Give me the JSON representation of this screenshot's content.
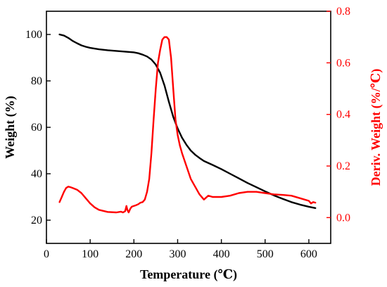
{
  "chart_data": {
    "type": "line",
    "title": "",
    "xlabel": "Temperature (℃)",
    "ylabel": "Weight (%)",
    "ylabel_right": "Deriv. Weight (%/℃)",
    "xlim": [
      0,
      650
    ],
    "ylim": [
      10,
      110
    ],
    "ylim_right": [
      -0.1,
      0.8
    ],
    "x_ticks": [
      0,
      100,
      200,
      300,
      400,
      500,
      600
    ],
    "y_ticks": [
      20,
      40,
      60,
      80,
      100
    ],
    "y_ticks_right": [
      0.0,
      0.2,
      0.4,
      0.6,
      0.8
    ],
    "y_tick_labels_right": [
      "0.0",
      "0.2",
      "0.4",
      "0.6",
      "0.8"
    ],
    "colors": {
      "left_axis": "#000000",
      "right_axis": "#ff0000"
    },
    "grid": false,
    "series": [
      {
        "axis": "left",
        "color": "#000000",
        "x": [
          30,
          40,
          50,
          60,
          70,
          80,
          90,
          100,
          120,
          140,
          160,
          180,
          200,
          210,
          220,
          230,
          240,
          250,
          260,
          270,
          280,
          290,
          300,
          310,
          320,
          330,
          340,
          350,
          360,
          380,
          400,
          420,
          440,
          460,
          480,
          500,
          520,
          540,
          560,
          580,
          600,
          615
        ],
        "y": [
          100,
          99.5,
          98.5,
          97.2,
          96.2,
          95.3,
          94.7,
          94.2,
          93.6,
          93.2,
          92.9,
          92.6,
          92.3,
          91.9,
          91.3,
          90.5,
          89.2,
          87.0,
          83.5,
          78.0,
          71.0,
          64.5,
          59.5,
          55.5,
          52.5,
          50.0,
          48.2,
          46.8,
          45.5,
          43.8,
          42.0,
          40.0,
          38.0,
          36.0,
          34.2,
          32.4,
          30.7,
          29.2,
          27.8,
          26.7,
          25.8,
          25.2
        ]
      },
      {
        "axis": "right",
        "color": "#ff0000",
        "x": [
          30,
          35,
          40,
          45,
          50,
          55,
          60,
          70,
          80,
          90,
          100,
          110,
          120,
          140,
          160,
          170,
          175,
          180,
          183,
          185,
          188,
          192,
          195,
          200,
          205,
          210,
          215,
          220,
          225,
          230,
          235,
          240,
          245,
          250,
          255,
          260,
          265,
          270,
          275,
          280,
          285,
          290,
          295,
          300,
          305,
          310,
          320,
          330,
          340,
          350,
          360,
          370,
          380,
          400,
          420,
          440,
          460,
          480,
          500,
          520,
          540,
          560,
          580,
          600,
          605,
          610,
          615
        ],
        "y": [
          0.06,
          0.08,
          0.1,
          0.115,
          0.12,
          0.118,
          0.115,
          0.108,
          0.095,
          0.075,
          0.055,
          0.04,
          0.03,
          0.022,
          0.02,
          0.023,
          0.02,
          0.025,
          0.045,
          0.03,
          0.02,
          0.035,
          0.042,
          0.045,
          0.048,
          0.052,
          0.058,
          0.06,
          0.07,
          0.1,
          0.15,
          0.25,
          0.38,
          0.5,
          0.6,
          0.65,
          0.69,
          0.7,
          0.7,
          0.69,
          0.62,
          0.5,
          0.38,
          0.32,
          0.28,
          0.25,
          0.2,
          0.15,
          0.12,
          0.09,
          0.07,
          0.085,
          0.08,
          0.08,
          0.085,
          0.095,
          0.1,
          0.1,
          0.095,
          0.09,
          0.088,
          0.085,
          0.075,
          0.065,
          0.055,
          0.06,
          0.058
        ]
      }
    ]
  }
}
